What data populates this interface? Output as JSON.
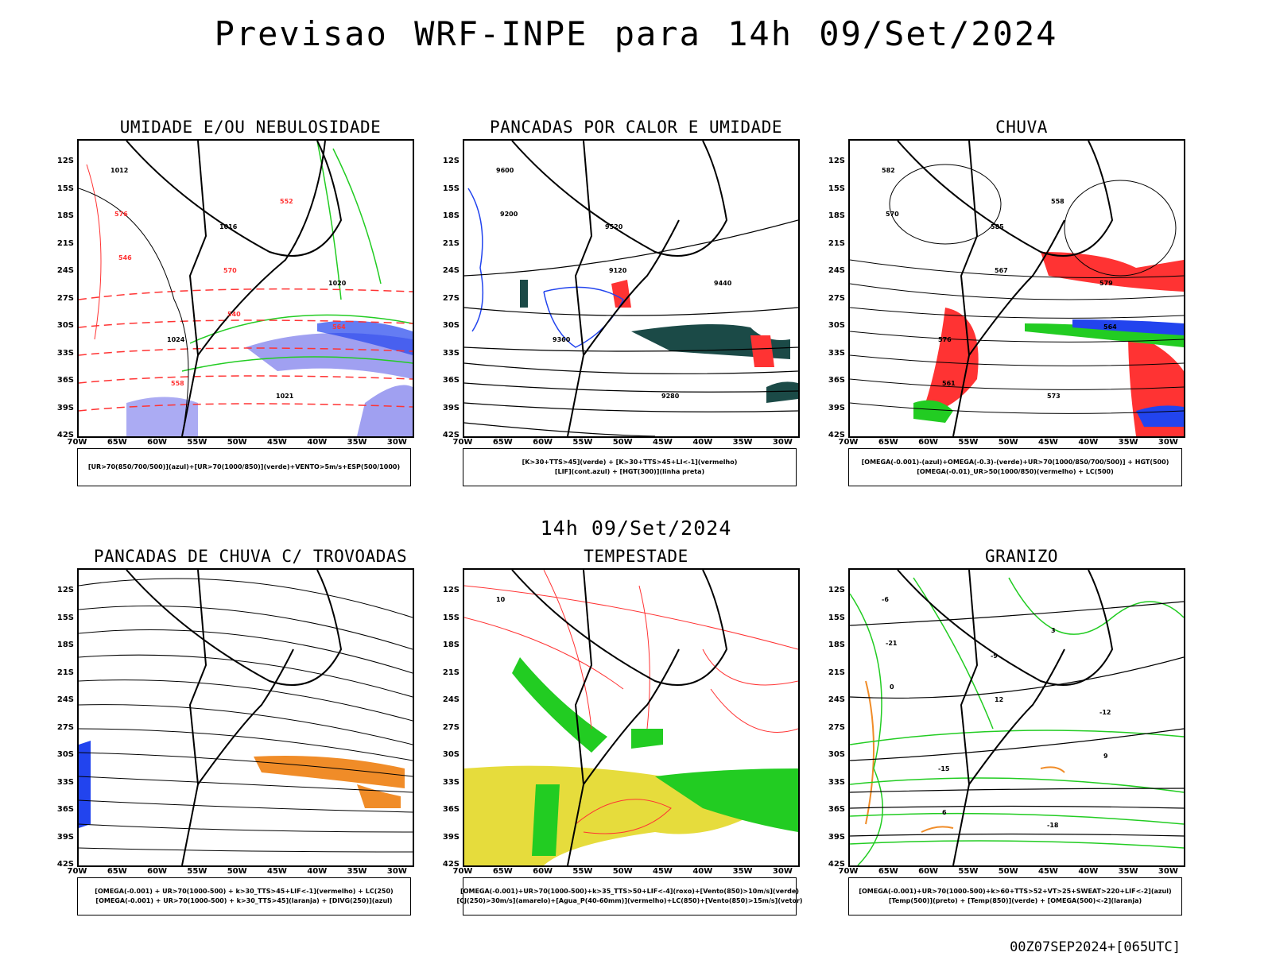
{
  "title": "Previsao WRF-INPE  para 14h 09/Set/2024",
  "mid_date": "14h 09/Set/2024",
  "footer": "00Z07SEP2024+[065UTC]",
  "axes": {
    "lat_labels": [
      "12S",
      "15S",
      "18S",
      "21S",
      "24S",
      "27S",
      "30S",
      "33S",
      "36S",
      "39S",
      "42S"
    ],
    "lon_labels": [
      "70W",
      "65W",
      "60W",
      "55W",
      "50W",
      "45W",
      "40W",
      "35W",
      "30W"
    ]
  },
  "colors": {
    "green": "#22cc22",
    "red": "#ff3333",
    "blue": "#2244ee",
    "lavender": "#8888ee",
    "dark_teal": "#1b4a47",
    "yellow": "#e6dc3c",
    "orange": "#f08c28",
    "border": "#000000"
  },
  "panels": [
    {
      "title": "UMIDADE E/OU NEBULOSIDADE",
      "legend": [
        "[UR>70(850/700/500)](azul)+[UR>70(1000/850)](verde)+VENTO>5m/s+ESP(500/1000)"
      ],
      "labels": [
        "1012",
        "1016",
        "1020",
        "1024",
        "1021",
        "576",
        "570",
        "564",
        "558",
        "552",
        "546",
        "540"
      ]
    },
    {
      "title": "PANCADAS POR CALOR E UMIDADE",
      "legend": [
        "[K>30+TTS>45](verde) + [K>30+TTS>45+LI<-1](vermelho)",
        "[LIF](cont.azul) + [HGT(300)](linha preta)"
      ],
      "labels": [
        "9600",
        "9520",
        "9440",
        "9360",
        "9280",
        "9200",
        "9120"
      ]
    },
    {
      "title": "CHUVA",
      "legend": [
        "[OMEGA(-0.001)-(azul)+OMEGA(-0.3)-(verde)+UR>70(1000/850/700/500)] + HGT(500)",
        "[OMEGA(-0.01)_UR>50(1000/850)(vermelho) + LC(500)"
      ],
      "labels": [
        "582",
        "585",
        "579",
        "576",
        "573",
        "570",
        "567",
        "564",
        "561",
        "558"
      ]
    },
    {
      "title": "PANCADAS DE CHUVA C/ TROVOADAS",
      "legend": [
        "[OMEGA(-0.001) + UR>70(1000-500) + k>30_TTS>45+LIF<-1](vermelho) + LC(250)",
        "[OMEGA(-0.001) + UR>70(1000-500) + k>30_TTS>45](laranja) + [DIVG(250)](azul)"
      ],
      "labels": []
    },
    {
      "title": "TEMPESTADE",
      "legend": [
        "[OMEGA(-0.001)+UR>70(1000-500)+k>35_TTS>50+LIF<-4](roxo)+[Vento(850)>10m/s](verde)",
        "[CJ(250)>30m/s](amarelo)+[Agua_P(40-60mm)](vermelho)+LC(850)+[Vento(850)>15m/s](vetor)"
      ],
      "labels": [
        "10"
      ]
    },
    {
      "title": "GRANIZO",
      "legend": [
        "[OMEGA(-0.001)+UR>70(1000-500)+k>60+TTS>52+VT>25+SWEAT>220+LIF<-2](azul)",
        "[Temp(500)](preto) + [Temp(850)](verde) + [OMEGA(500)<-2](laranja)"
      ],
      "labels": [
        "-6",
        "-9",
        "-12",
        "-15",
        "-18",
        "-21",
        "12",
        "9",
        "6",
        "3",
        "0"
      ]
    }
  ]
}
